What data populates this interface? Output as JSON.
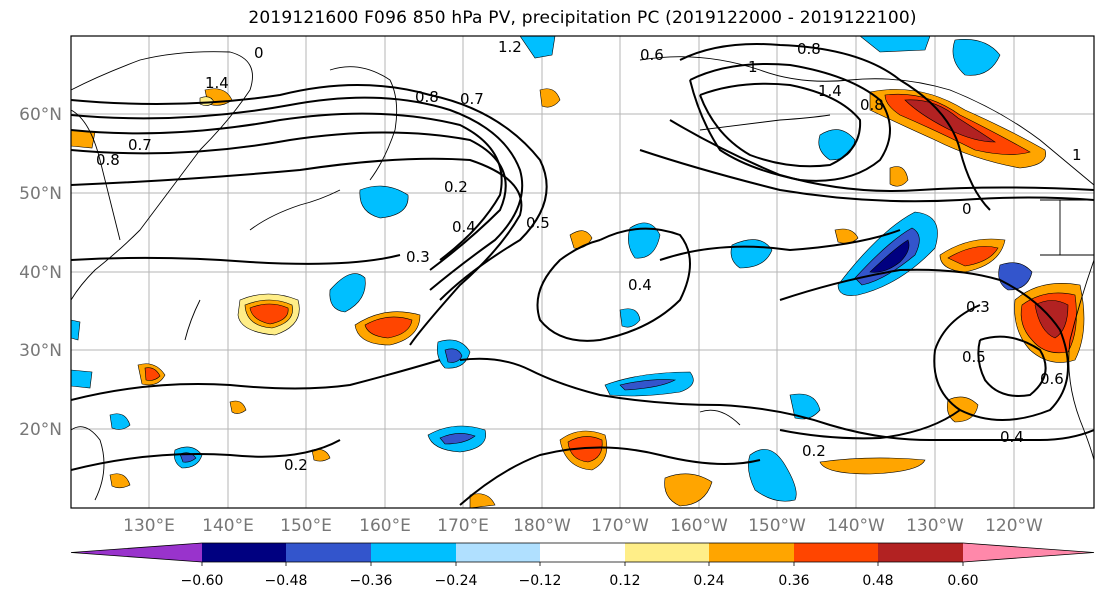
{
  "title": "2019121600 F096 850 hPa PV, precipitation PC (2019122000 - 2019122100)",
  "map": {
    "lon_labels": [
      "130°E",
      "140°E",
      "150°E",
      "160°E",
      "170°E",
      "180°W",
      "170°W",
      "160°W",
      "150°W",
      "140°W",
      "130°W",
      "120°W"
    ],
    "lat_labels": [
      "60°N",
      "50°N",
      "40°N",
      "30°N",
      "20°N"
    ],
    "contour_labels": [
      "1.2",
      "0.6",
      "0.8",
      "0",
      "1.4",
      "1",
      "0.8",
      "0.7",
      "0.8",
      "0.7",
      "1.4",
      "0.8",
      "0.2",
      "0.4",
      "0.3",
      "0.5",
      "0.4",
      "0.3",
      "0.5",
      "0.6",
      "0.4",
      "0.2",
      "0.2",
      "1",
      "0"
    ]
  },
  "colorbar": {
    "ticks": [
      "−0.60",
      "−0.48",
      "−0.36",
      "−0.24",
      "−0.12",
      "0.12",
      "0.24",
      "0.36",
      "0.48",
      "0.60"
    ],
    "colors": [
      "#9933cc",
      "#000080",
      "#3355cc",
      "#00bfff",
      "#b0e0ff",
      "#ffffff",
      "#ffee88",
      "#ffa500",
      "#ff4500",
      "#b22222",
      "#ff88aa"
    ]
  }
}
